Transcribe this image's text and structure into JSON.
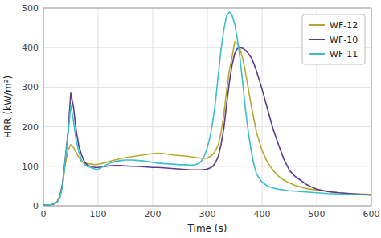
{
  "chart_data": {
    "type": "line",
    "xlabel": "Time (s)",
    "ylabel": "HRR (kW/m²)",
    "xlim": [
      0,
      600
    ],
    "ylim": [
      0,
      500
    ],
    "xticks": [
      0,
      100,
      200,
      300,
      400,
      500,
      600
    ],
    "yticks": [
      0,
      100,
      200,
      300,
      400,
      500
    ],
    "grid": true,
    "legend": "upper right",
    "series": [
      {
        "name": "WF-12",
        "color": "#b5a832",
        "x": [
          0,
          5,
          15,
          20,
          25,
          30,
          35,
          40,
          45,
          50,
          55,
          60,
          65,
          70,
          75,
          80,
          85,
          90,
          95,
          100,
          110,
          120,
          130,
          140,
          150,
          160,
          170,
          180,
          190,
          200,
          210,
          220,
          230,
          240,
          250,
          260,
          270,
          280,
          285,
          290,
          295,
          300,
          305,
          310,
          315,
          320,
          325,
          330,
          335,
          340,
          345,
          350,
          355,
          360,
          365,
          370,
          375,
          380,
          390,
          400,
          410,
          420,
          430,
          440,
          450,
          460,
          470,
          480,
          490,
          500,
          520,
          540,
          560,
          580,
          600
        ],
        "values": [
          2,
          2,
          3,
          5,
          10,
          25,
          55,
          105,
          140,
          155,
          148,
          135,
          122,
          112,
          108,
          107,
          106,
          105,
          104,
          105,
          108,
          112,
          116,
          119,
          122,
          124,
          126,
          128,
          130,
          132,
          133,
          132,
          130,
          128,
          127,
          126,
          124,
          122,
          121,
          120,
          120,
          121,
          125,
          130,
          140,
          155,
          185,
          230,
          290,
          340,
          375,
          415,
          410,
          395,
          370,
          335,
          295,
          255,
          185,
          140,
          110,
          90,
          75,
          65,
          58,
          52,
          48,
          44,
          42,
          40,
          36,
          33,
          31,
          30,
          29
        ]
      },
      {
        "name": "WF-10",
        "color": "#5b3a8a",
        "x": [
          0,
          5,
          15,
          20,
          25,
          30,
          35,
          40,
          45,
          50,
          55,
          60,
          65,
          70,
          75,
          80,
          85,
          90,
          95,
          100,
          110,
          120,
          130,
          140,
          150,
          160,
          170,
          180,
          190,
          200,
          210,
          220,
          230,
          240,
          250,
          260,
          270,
          280,
          285,
          290,
          295,
          300,
          305,
          310,
          315,
          320,
          325,
          330,
          335,
          340,
          345,
          350,
          355,
          360,
          365,
          370,
          375,
          380,
          385,
          390,
          400,
          410,
          420,
          430,
          440,
          450,
          460,
          470,
          480,
          490,
          500,
          520,
          540,
          560,
          580,
          600
        ],
        "values": [
          2,
          2,
          3,
          5,
          10,
          22,
          55,
          120,
          185,
          285,
          250,
          190,
          150,
          128,
          112,
          103,
          100,
          98,
          97,
          97,
          99,
          101,
          102,
          102,
          101,
          100,
          100,
          99,
          98,
          97,
          97,
          96,
          95,
          94,
          93,
          92,
          91,
          91,
          91,
          91,
          92,
          93,
          96,
          100,
          110,
          125,
          155,
          195,
          255,
          310,
          355,
          385,
          398,
          400,
          398,
          393,
          385,
          375,
          360,
          340,
          295,
          245,
          195,
          155,
          118,
          90,
          75,
          65,
          55,
          48,
          42,
          36,
          33,
          31,
          29,
          27
        ]
      },
      {
        "name": "WF-11",
        "color": "#3bbdca",
        "x": [
          0,
          5,
          15,
          20,
          25,
          30,
          35,
          40,
          45,
          50,
          55,
          60,
          65,
          70,
          75,
          80,
          85,
          90,
          95,
          100,
          110,
          120,
          130,
          140,
          150,
          160,
          170,
          180,
          190,
          200,
          210,
          220,
          230,
          240,
          250,
          260,
          270,
          275,
          280,
          285,
          290,
          295,
          300,
          305,
          310,
          315,
          320,
          325,
          330,
          335,
          340,
          345,
          350,
          355,
          360,
          365,
          370,
          375,
          380,
          385,
          390,
          400,
          410,
          420,
          430,
          440,
          450,
          460,
          470,
          480,
          490,
          500,
          520,
          540,
          560,
          580,
          600
        ],
        "values": [
          2,
          2,
          3,
          5,
          10,
          20,
          50,
          115,
          180,
          255,
          215,
          165,
          135,
          115,
          105,
          100,
          98,
          95,
          93,
          92,
          100,
          107,
          112,
          114,
          116,
          116,
          115,
          114,
          112,
          110,
          108,
          107,
          106,
          105,
          104,
          104,
          103,
          103,
          105,
          108,
          115,
          128,
          148,
          175,
          215,
          265,
          330,
          395,
          445,
          480,
          490,
          482,
          460,
          420,
          370,
          305,
          240,
          185,
          140,
          105,
          80,
          60,
          50,
          45,
          42,
          40,
          38,
          37,
          36,
          35,
          34,
          33,
          31,
          30,
          29,
          28,
          27
        ]
      }
    ]
  }
}
